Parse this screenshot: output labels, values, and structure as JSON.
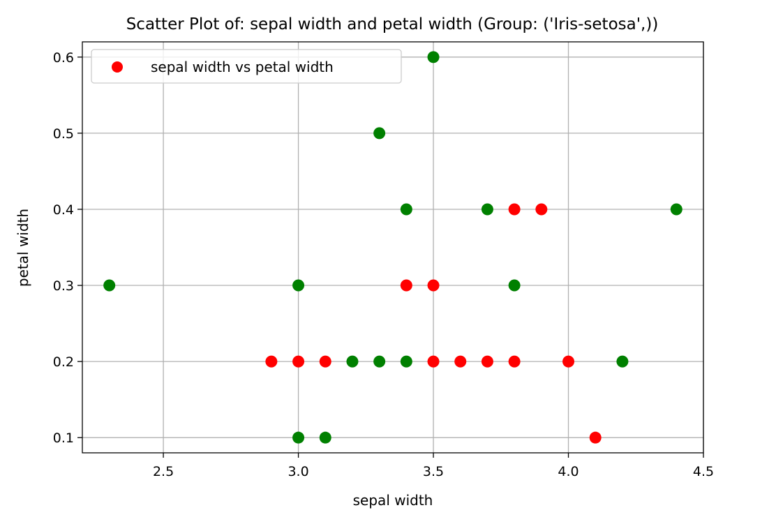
{
  "chart_data": {
    "type": "scatter",
    "title": "Scatter Plot of: sepal width and petal width (Group: ('Iris-setosa',))",
    "xlabel": "sepal width",
    "ylabel": "petal width",
    "xlim": [
      2.2,
      4.5
    ],
    "ylim": [
      0.08,
      0.62
    ],
    "xticks": [
      2.5,
      3.0,
      3.5,
      4.0,
      4.5
    ],
    "xtick_labels": [
      "2.5",
      "3.0",
      "3.5",
      "4.0",
      "4.5"
    ],
    "yticks": [
      0.1,
      0.2,
      0.3,
      0.4,
      0.5,
      0.6
    ],
    "ytick_labels": [
      "0.1",
      "0.2",
      "0.3",
      "0.4",
      "0.5",
      "0.6"
    ],
    "grid": true,
    "legend": {
      "position": "top-left",
      "entries": [
        {
          "label": "sepal width vs petal width",
          "color": "#ff0000"
        }
      ]
    },
    "series": [
      {
        "color": "#ff0000",
        "points": [
          [
            2.9,
            0.2
          ],
          [
            3.0,
            0.2
          ],
          [
            3.1,
            0.2
          ],
          [
            3.5,
            0.2
          ],
          [
            3.6,
            0.2
          ],
          [
            3.7,
            0.2
          ],
          [
            3.8,
            0.2
          ],
          [
            4.0,
            0.2
          ],
          [
            3.4,
            0.3
          ],
          [
            3.5,
            0.3
          ],
          [
            3.8,
            0.4
          ],
          [
            3.9,
            0.4
          ],
          [
            4.1,
            0.1
          ]
        ]
      },
      {
        "color": "#008000",
        "points": [
          [
            2.3,
            0.3
          ],
          [
            3.0,
            0.3
          ],
          [
            3.0,
            0.1
          ],
          [
            3.1,
            0.1
          ],
          [
            3.2,
            0.2
          ],
          [
            3.3,
            0.2
          ],
          [
            3.4,
            0.2
          ],
          [
            4.2,
            0.2
          ],
          [
            3.4,
            0.4
          ],
          [
            3.7,
            0.4
          ],
          [
            4.4,
            0.4
          ],
          [
            3.3,
            0.5
          ],
          [
            3.5,
            0.6
          ],
          [
            3.8,
            0.3
          ]
        ]
      }
    ]
  }
}
